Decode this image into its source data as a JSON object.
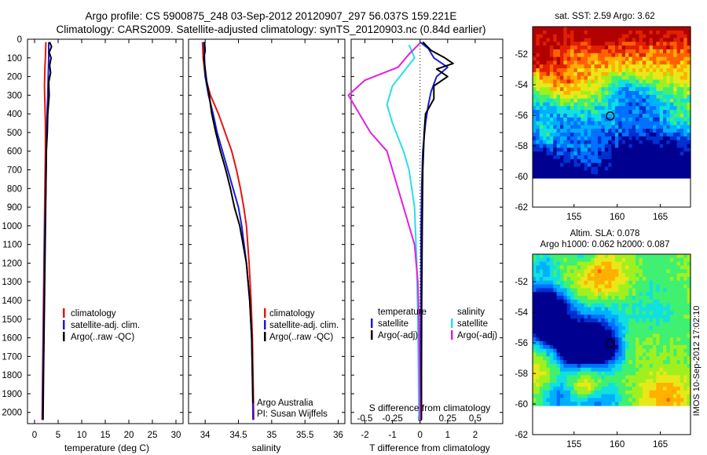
{
  "header": {
    "line1": "Argo profile: CS 5900875_248 03-Sep-2012 20120907_297 56.037S 159.221E",
    "line2": "Climatology: CARS2009. Satellite-adjusted climatology: synTS_20120903.nc (0.84d earlier)"
  },
  "side_stamp": "IMOS 10-Sep-2012 17:02:10",
  "colors": {
    "climatology": "#e8120f",
    "satellite": "#1b1bd8",
    "argo": "#000000",
    "sal_satellite": "#25e0e8",
    "sal_argo": "#e020e0",
    "map_land": "#ffffff"
  },
  "depth_axis": {
    "ticks": [
      "0",
      "100",
      "200",
      "300",
      "400",
      "500",
      "600",
      "700",
      "800",
      "900",
      "1000",
      "1100",
      "1200",
      "1300",
      "1400",
      "1500",
      "1600",
      "1700",
      "1800",
      "1900",
      "2000"
    ],
    "range": [
      0,
      2060
    ]
  },
  "chart_data": [
    {
      "id": "temperature",
      "type": "line",
      "xlabel": "temperature (deg C)",
      "xlim": [
        -1.5,
        31.5
      ],
      "xticks": [
        "0",
        "5",
        "10",
        "15",
        "20",
        "25",
        "30"
      ],
      "ylim": [
        0,
        2060
      ],
      "legend": [
        "climatology",
        "satellite-adj. clim.",
        "Argo(..raw -QC)"
      ],
      "series": [
        {
          "name": "climatology",
          "color_key": "climatology",
          "points": [
            [
              2.4,
              15
            ],
            [
              2.3,
              100
            ],
            [
              2.2,
              150
            ],
            [
              2.1,
              250
            ],
            [
              2.2,
              350
            ],
            [
              2.3,
              450
            ],
            [
              2.3,
              600
            ],
            [
              2.2,
              800
            ],
            [
              2.1,
              1000
            ],
            [
              2.0,
              1200
            ],
            [
              1.9,
              1400
            ],
            [
              1.8,
              1600
            ],
            [
              1.7,
              1800
            ],
            [
              1.6,
              2040
            ]
          ]
        },
        {
          "name": "satellite-adj. clim.",
          "color_key": "satellite",
          "points": [
            [
              3.0,
              15
            ],
            [
              3.0,
              100
            ],
            [
              2.9,
              200
            ],
            [
              2.8,
              300
            ],
            [
              2.6,
              450
            ],
            [
              2.5,
              600
            ],
            [
              2.4,
              800
            ],
            [
              2.2,
              1000
            ],
            [
              2.1,
              1200
            ],
            [
              2.0,
              1400
            ],
            [
              1.9,
              1600
            ],
            [
              1.8,
              1800
            ],
            [
              1.7,
              2040
            ]
          ]
        },
        {
          "name": "Argo(..raw -QC)",
          "color_key": "argo",
          "points": [
            [
              3.2,
              15
            ],
            [
              3.6,
              40
            ],
            [
              3.1,
              70
            ],
            [
              3.5,
              100
            ],
            [
              3.2,
              140
            ],
            [
              3.4,
              180
            ],
            [
              3.0,
              230
            ],
            [
              3.1,
              300
            ],
            [
              2.8,
              400
            ],
            [
              2.7,
              500
            ],
            [
              2.5,
              600
            ],
            [
              2.4,
              800
            ],
            [
              2.3,
              1000
            ],
            [
              2.2,
              1200
            ],
            [
              2.1,
              1400
            ],
            [
              2.0,
              1600
            ],
            [
              1.9,
              1800
            ],
            [
              1.8,
              2040
            ]
          ]
        }
      ]
    },
    {
      "id": "salinity",
      "type": "line",
      "xlabel": "salinity",
      "xlim": [
        33.75,
        36.1
      ],
      "xticks": [
        "34",
        "34.5",
        "35",
        "35.5",
        "36"
      ],
      "ylim": [
        0,
        2060
      ],
      "legend": [
        "climatology",
        "satellite-adj. clim.",
        "Argo(..raw -QC)"
      ],
      "annotation": [
        "Argo Australia",
        "PI: Susan Wijffels"
      ],
      "series": [
        {
          "name": "climatology",
          "color_key": "climatology",
          "points": [
            [
              33.96,
              15
            ],
            [
              33.97,
              100
            ],
            [
              34.0,
              200
            ],
            [
              34.08,
              300
            ],
            [
              34.2,
              400
            ],
            [
              34.3,
              500
            ],
            [
              34.4,
              600
            ],
            [
              34.47,
              700
            ],
            [
              34.53,
              800
            ],
            [
              34.58,
              900
            ],
            [
              34.62,
              1000
            ],
            [
              34.66,
              1200
            ],
            [
              34.69,
              1400
            ],
            [
              34.71,
              1600
            ],
            [
              34.72,
              1800
            ],
            [
              34.73,
              2040
            ]
          ]
        },
        {
          "name": "satellite-adj. clim.",
          "color_key": "satellite",
          "points": [
            [
              33.98,
              15
            ],
            [
              33.99,
              100
            ],
            [
              34.0,
              200
            ],
            [
              34.05,
              300
            ],
            [
              34.12,
              400
            ],
            [
              34.18,
              500
            ],
            [
              34.26,
              600
            ],
            [
              34.34,
              700
            ],
            [
              34.42,
              800
            ],
            [
              34.5,
              900
            ],
            [
              34.55,
              1000
            ],
            [
              34.62,
              1200
            ],
            [
              34.67,
              1400
            ],
            [
              34.7,
              1600
            ],
            [
              34.71,
              1800
            ],
            [
              34.72,
              2040
            ]
          ]
        },
        {
          "name": "Argo(..raw -QC)",
          "color_key": "argo",
          "points": [
            [
              33.99,
              15
            ],
            [
              34.0,
              60
            ],
            [
              33.98,
              100
            ],
            [
              34.0,
              160
            ],
            [
              34.02,
              220
            ],
            [
              34.06,
              300
            ],
            [
              34.1,
              400
            ],
            [
              34.16,
              500
            ],
            [
              34.23,
              600
            ],
            [
              34.31,
              700
            ],
            [
              34.38,
              800
            ],
            [
              34.44,
              900
            ],
            [
              34.52,
              1000
            ],
            [
              34.62,
              1200
            ],
            [
              34.67,
              1400
            ],
            [
              34.7,
              1600
            ],
            [
              34.71,
              1800
            ],
            [
              34.72,
              1950
            ]
          ]
        }
      ]
    },
    {
      "id": "differences",
      "type": "line",
      "xlabel": "T difference from climatology",
      "xlim": [
        -2.5,
        3.0
      ],
      "xticks": [
        "-2",
        "-1",
        "0",
        "1",
        "2"
      ],
      "ylim": [
        0,
        2060
      ],
      "top_axis_label": "S difference from climatology",
      "top_axis_xlim": [
        -0.625,
        0.75
      ],
      "top_axis_ticks": [
        "-0.5",
        "-0.25",
        "0",
        "0.25",
        "0.5"
      ],
      "legend_headers": [
        "temperature",
        "salinity"
      ],
      "legend_temperature": [
        "satellite",
        "Argo(-adj)"
      ],
      "legend_salinity": [
        "satellite",
        "Argo(-adj)"
      ],
      "series": [
        {
          "name": "T satellite",
          "color_key": "satellite",
          "points": [
            [
              0.0,
              15
            ],
            [
              0.3,
              50
            ],
            [
              0.5,
              100
            ],
            [
              1.0,
              150
            ],
            [
              0.6,
              200
            ],
            [
              0.4,
              280
            ],
            [
              0.3,
              350
            ],
            [
              0.2,
              450
            ],
            [
              0.1,
              600
            ],
            [
              0.06,
              800
            ],
            [
              0.04,
              1000
            ],
            [
              0.03,
              1400
            ],
            [
              0.02,
              1800
            ],
            [
              0.02,
              2040
            ]
          ]
        },
        {
          "name": "T Argo(-adj)",
          "color_key": "argo",
          "points": [
            [
              0.1,
              15
            ],
            [
              0.4,
              60
            ],
            [
              0.9,
              100
            ],
            [
              1.2,
              130
            ],
            [
              0.6,
              160
            ],
            [
              1.0,
              200
            ],
            [
              0.5,
              250
            ],
            [
              0.5,
              320
            ],
            [
              0.2,
              400
            ],
            [
              0.15,
              500
            ],
            [
              0.1,
              700
            ],
            [
              0.08,
              1000
            ],
            [
              0.06,
              1400
            ],
            [
              0.05,
              1800
            ],
            [
              0.05,
              2040
            ]
          ]
        },
        {
          "name": "S satellite",
          "color_key": "sal_satellite",
          "points": [
            [
              -0.1,
              30
            ],
            [
              -0.05,
              100
            ],
            [
              -0.25,
              250
            ],
            [
              -0.3,
              350
            ],
            [
              -0.25,
              450
            ],
            [
              -0.15,
              600
            ],
            [
              -0.1,
              700
            ],
            [
              -0.05,
              900
            ],
            [
              -0.03,
              1200
            ],
            [
              -0.02,
              1500
            ],
            [
              -0.01,
              2040
            ]
          ]
        },
        {
          "name": "S Argo(-adj)",
          "color_key": "sal_argo",
          "points": [
            [
              0.0,
              20
            ],
            [
              -0.1,
              80
            ],
            [
              -0.2,
              150
            ],
            [
              -0.5,
              220
            ],
            [
              -0.65,
              300
            ],
            [
              -0.55,
              400
            ],
            [
              -0.45,
              500
            ],
            [
              -0.3,
              600
            ],
            [
              -0.25,
              700
            ],
            [
              -0.15,
              900
            ],
            [
              -0.05,
              1100
            ],
            [
              -0.02,
              1300
            ],
            [
              -0.01,
              1500
            ],
            [
              0.0,
              2040
            ]
          ]
        }
      ]
    },
    {
      "id": "sst_map",
      "type": "heatmap",
      "title": "sat. SST: 2.59 Argo: 3.62",
      "xlim": [
        150.2,
        168.5
      ],
      "ylim": [
        -62,
        -50.2
      ],
      "xticks": [
        "155",
        "160",
        "165"
      ],
      "yticks": [
        "-52",
        "-54",
        "-56",
        "-58",
        "-60",
        "-62"
      ],
      "data_extent": {
        "lat_min": -60.1,
        "lon_min": 150.2,
        "lon_max": 168.5
      },
      "float_marker": {
        "lon": 159.2,
        "lat": -56.04
      },
      "palette": [
        "#000090",
        "#0030d0",
        "#0070ff",
        "#00b0ff",
        "#10e0e0",
        "#40f070",
        "#a0f020",
        "#e8e818",
        "#ffb000",
        "#ff6000",
        "#e02000",
        "#b00000"
      ],
      "seed": 11
    },
    {
      "id": "sla_map",
      "type": "heatmap",
      "title_lines": [
        "Altim. SLA: 0.078",
        "Argo h1000: 0.062 h2000: 0.087"
      ],
      "xlim": [
        150.2,
        168.5
      ],
      "ylim": [
        -62,
        -50.2
      ],
      "xticks": [
        "155",
        "160",
        "165"
      ],
      "yticks": [
        "-52",
        "-54",
        "-56",
        "-58",
        "-60",
        "-62"
      ],
      "data_extent": {
        "lat_min": -60.1,
        "lon_min": 150.2,
        "lon_max": 168.5
      },
      "float_marker": {
        "lon": 159.2,
        "lat": -56.04
      },
      "palette": [
        "#000090",
        "#0030d0",
        "#0070ff",
        "#00b0ff",
        "#10e0e0",
        "#40f070",
        "#a0f020",
        "#e8e818",
        "#ffb000",
        "#ff6000",
        "#e02000",
        "#b00000"
      ],
      "seed": 37
    }
  ]
}
